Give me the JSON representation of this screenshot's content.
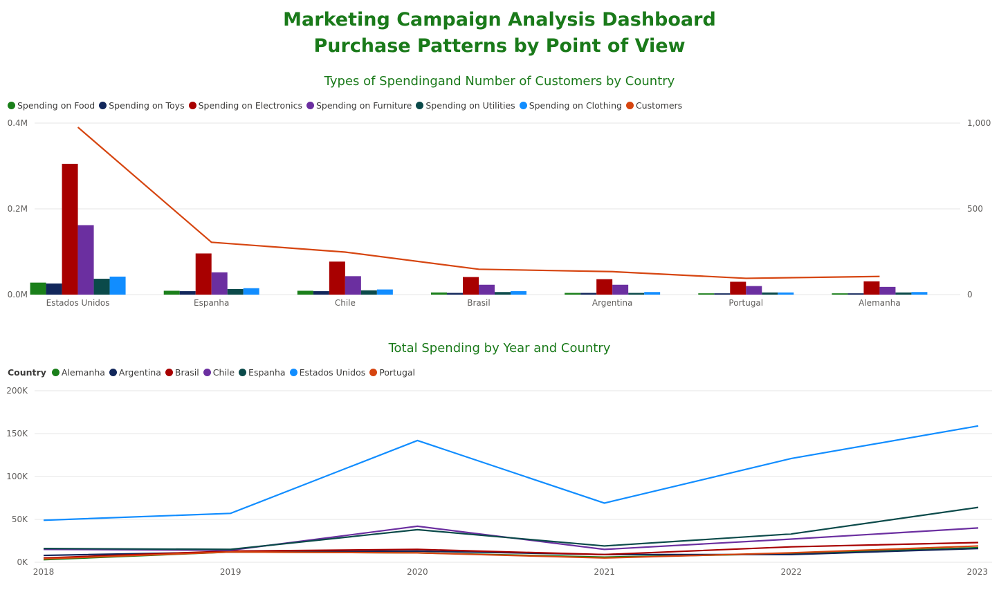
{
  "header": {
    "title_line1": "Marketing Campaign Analysis Dashboard",
    "title_line2": "Purchase Patterns by Point of View"
  },
  "chart_data": [
    {
      "type": "bar",
      "title": "Types of Spendingand Number of Customers by Country",
      "categories": [
        "Estados Unidos",
        "Espanha",
        "Chile",
        "Brasil",
        "Argentina",
        "Portugal",
        "Alemanha"
      ],
      "series": [
        {
          "name": "Spending on Food",
          "color": "#1a7f1a",
          "values": [
            28000,
            9000,
            9000,
            5000,
            4000,
            3000,
            3000
          ]
        },
        {
          "name": "Spending on Toys",
          "color": "#12275b",
          "values": [
            26000,
            8000,
            8000,
            4000,
            4000,
            3000,
            3000
          ]
        },
        {
          "name": "Spending on Electronics",
          "color": "#a80000",
          "values": [
            305000,
            96000,
            77000,
            41000,
            36000,
            30000,
            31000
          ]
        },
        {
          "name": "Spending on Furniture",
          "color": "#6b2fa0",
          "values": [
            162000,
            52000,
            43000,
            23000,
            23000,
            20000,
            18000
          ]
        },
        {
          "name": "Spending on Utilities",
          "color": "#0b4a4a",
          "values": [
            37000,
            13000,
            10000,
            6000,
            4000,
            5000,
            5000
          ]
        },
        {
          "name": "Spending on Clothing",
          "color": "#118dff",
          "values": [
            42000,
            15000,
            12000,
            8000,
            6000,
            5000,
            6000
          ]
        },
        {
          "name": "Customers",
          "type": "line",
          "axis": "right",
          "color": "#d64510",
          "values": [
            976,
            305,
            248,
            148,
            134,
            95,
            106
          ]
        }
      ],
      "y_left": {
        "ticks": [
          "0.4M",
          "0.2M",
          "0.0M"
        ],
        "range": [
          0,
          400000
        ]
      },
      "y_right": {
        "ticks": [
          "1,000",
          "500",
          "0"
        ],
        "range": [
          0,
          1000
        ]
      },
      "legend_position": "top-left",
      "grid": true
    },
    {
      "type": "line",
      "title": "Total Spending by Year and Country",
      "legend_title": "Country",
      "x": [
        "2018",
        "2019",
        "2020",
        "2021",
        "2022",
        "2023"
      ],
      "y_ticks": [
        "200K",
        "150K",
        "100K",
        "50K",
        "0K"
      ],
      "ylim": [
        0,
        200000
      ],
      "series": [
        {
          "name": "Alemanha",
          "color": "#1a7f1a",
          "values": [
            3000,
            12000,
            11000,
            6000,
            10000,
            17000
          ]
        },
        {
          "name": "Argentina",
          "color": "#12275b",
          "values": [
            8000,
            12000,
            13000,
            9000,
            9000,
            16000
          ]
        },
        {
          "name": "Brasil",
          "color": "#a80000",
          "values": [
            5000,
            13000,
            15000,
            9000,
            18000,
            23000
          ]
        },
        {
          "name": "Chile",
          "color": "#6b2fa0",
          "values": [
            15000,
            14000,
            42000,
            15000,
            27000,
            40000
          ]
        },
        {
          "name": "Espanha",
          "color": "#0b4a4a",
          "values": [
            16000,
            15000,
            38000,
            19000,
            33000,
            64000
          ]
        },
        {
          "name": "Estados Unidos",
          "color": "#118dff",
          "values": [
            49000,
            57000,
            142000,
            69000,
            121000,
            159000
          ]
        },
        {
          "name": "Portugal",
          "color": "#d64510",
          "values": [
            4000,
            12000,
            11000,
            5000,
            11000,
            19000
          ]
        }
      ],
      "legend_position": "top-left",
      "grid": true
    }
  ]
}
